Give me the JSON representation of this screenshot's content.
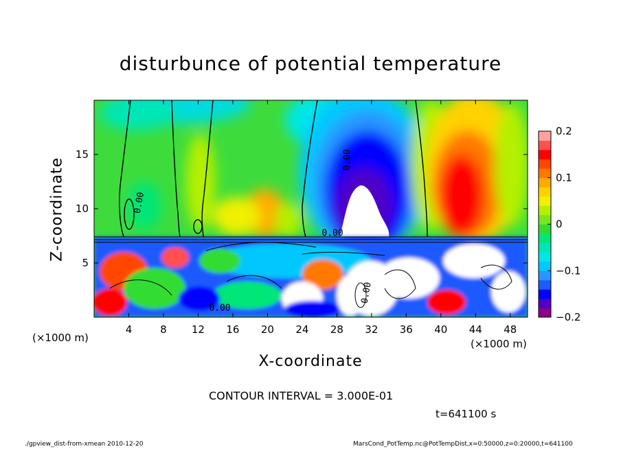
{
  "chart_data": {
    "type": "heatmap",
    "title": "disturbunce of potential temperature",
    "xlabel": "X-coordinate",
    "ylabel": "Z-coordinate",
    "x_unit_left": "(×1000 m)",
    "x_unit_right": "(×1000 m)",
    "xlim": [
      0,
      50
    ],
    "ylim": [
      0,
      20
    ],
    "xticks": [
      4,
      8,
      12,
      16,
      20,
      24,
      28,
      32,
      36,
      40,
      44,
      48
    ],
    "yticks": [
      5,
      10,
      15
    ],
    "colorbar": {
      "ticks": [
        0.2,
        0.1,
        0,
        -0.1,
        -0.2
      ],
      "tick_labels": [
        "0.2",
        "0.1",
        "0",
        "−0.1",
        "−0.2"
      ],
      "range": [
        -0.2,
        0.2
      ],
      "colors": [
        "#8b008b",
        "#5000c8",
        "#0000ff",
        "#1e5aff",
        "#2896ff",
        "#00c8ff",
        "#00e6e6",
        "#00e6b4",
        "#00e678",
        "#32dc32",
        "#78e61e",
        "#b4f000",
        "#f0f000",
        "#ffd200",
        "#ffaa00",
        "#ff7800",
        "#ff4600",
        "#ff0000",
        "#ff5050",
        "#ffa0a0"
      ]
    },
    "contour_labels": [
      "0.00",
      "0.00",
      "0.00",
      "0.00",
      "0.00"
    ],
    "contour_interval": "CONTOUR INTERVAL = 3.000E-01",
    "time": "t=641100 s"
  },
  "footer": {
    "left": "./gpview_dist-from-xmean   2010-12-20",
    "right": "MarsCond_PotTemp.nc@PotTempDist,x=0:50000,z=0:20000,t=641100"
  }
}
